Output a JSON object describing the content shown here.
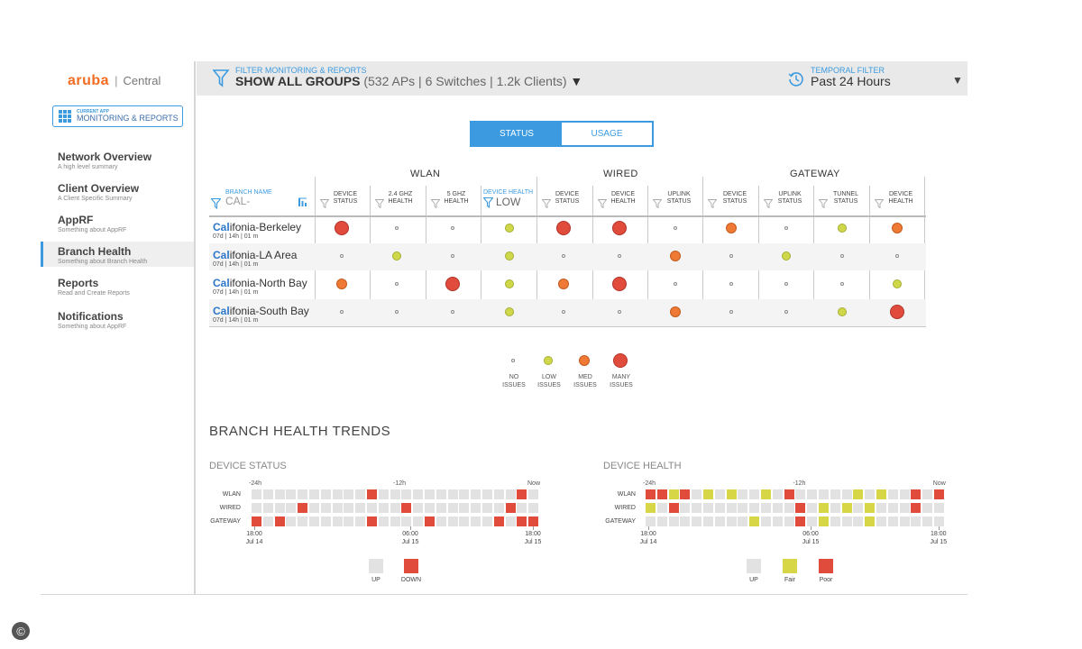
{
  "brand": {
    "name": "aruba",
    "separator": "|",
    "product": "Central"
  },
  "current_app": {
    "caption": "CURRENT APP",
    "name": "MONITORING & REPORTS"
  },
  "nav": [
    {
      "title": "Network Overview",
      "desc": "A high level summary",
      "active": false
    },
    {
      "title": "Client Overview",
      "desc": "A Client Specific Summary",
      "active": false
    },
    {
      "title": "AppRF",
      "desc": "Something about AppRF",
      "active": false
    },
    {
      "title": "Branch Health",
      "desc": "Something about Branch Health",
      "active": true
    },
    {
      "title": "Reports",
      "desc": "Read and Create Reports",
      "active": false
    },
    {
      "title": "Notifications",
      "desc": "Something about AppRF",
      "active": false
    }
  ],
  "filter": {
    "caption": "FILTER MONITORING & REPORTS",
    "value": "SHOW ALL GROUPS",
    "meta": "(532 APs | 6 Switches | 1.2k Clients)",
    "caret": "▼"
  },
  "temporal": {
    "caption": "TEMPORAL FILTER",
    "value": "Past 24 Hours",
    "caret": "▼"
  },
  "toggle": {
    "status": "STATUS",
    "usage": "USAGE"
  },
  "groups": [
    "WLAN",
    "WIRED",
    "GATEWAY"
  ],
  "branch_col": {
    "caption": "BRANCH NAME",
    "input": "CAL-"
  },
  "device_health_filter": {
    "caption": "DEVICE HEALTH",
    "value": "LOW"
  },
  "columns": [
    {
      "l1": "DEVICE",
      "l2": "STATUS"
    },
    {
      "l1": "2.4 GHZ",
      "l2": "HEALTH"
    },
    {
      "l1": "5 GHZ",
      "l2": "HEALTH"
    },
    {
      "l1": "",
      "l2": ""
    },
    {
      "l1": "DEVICE",
      "l2": "STATUS"
    },
    {
      "l1": "DEVICE",
      "l2": "HEALTH"
    },
    {
      "l1": "UPLINK",
      "l2": "STATUS"
    },
    {
      "l1": "DEVICE",
      "l2": "STATUS"
    },
    {
      "l1": "UPLINK",
      "l2": "STATUS"
    },
    {
      "l1": "TUNNEL",
      "l2": "STATUS"
    },
    {
      "l1": "DEVICE",
      "l2": "HEALTH"
    }
  ],
  "branches": [
    {
      "prefix": "Cal",
      "rest": "ifonia-Berkeley",
      "meta": "07d | 14h | 01 m",
      "status": [
        "many",
        "none",
        "none",
        "low",
        "many",
        "many",
        "none",
        "med",
        "none",
        "low",
        "med"
      ]
    },
    {
      "prefix": "Cal",
      "rest": "ifonia-LA Area",
      "meta": "07d | 14h | 01 m",
      "status": [
        "none",
        "low",
        "none",
        "low",
        "none",
        "none",
        "med",
        "none",
        "low",
        "none",
        "none"
      ]
    },
    {
      "prefix": "Cal",
      "rest": "ifonia-North Bay",
      "meta": "07d | 14h | 01 m",
      "status": [
        "med",
        "none",
        "many",
        "low",
        "med",
        "many",
        "none",
        "none",
        "none",
        "none",
        "low"
      ]
    },
    {
      "prefix": "Cal",
      "rest": "ifonia-South Bay",
      "meta": "07d | 14h | 01 m",
      "status": [
        "none",
        "none",
        "none",
        "low",
        "none",
        "none",
        "med",
        "none",
        "none",
        "low",
        "many"
      ]
    }
  ],
  "legend": [
    {
      "level": "none",
      "l1": "NO",
      "l2": "ISSUES"
    },
    {
      "level": "low",
      "l1": "LOW",
      "l2": "ISSUES"
    },
    {
      "level": "med",
      "l1": "MED",
      "l2": "ISSUES"
    },
    {
      "level": "many",
      "l1": "MANY",
      "l2": "ISSUES"
    }
  ],
  "trends": {
    "title": "BRANCH HEALTH TRENDS",
    "rows": [
      "WLAN",
      "WIRED",
      "GATEWAY"
    ],
    "top_labels": [
      "-24h",
      "-12h",
      "Now"
    ],
    "bottom_labels": [
      {
        "t": "18:00",
        "d": "Jul 14"
      },
      {
        "t": "06:00",
        "d": "Jul 15"
      },
      {
        "t": "18:00",
        "d": "Jul 15"
      }
    ],
    "device_status": {
      "title": "DEVICE STATUS",
      "grid": [
        "uuuuuuuuuuddduuuuuuuuuuuuuu",
        "uuuuuuuuuuuuuuuuuuuuuuuuuuu",
        "duduuuuuuuduuuuuuuuuuuuuudd"
      ],
      "cells": [
        [
          0,
          0,
          0,
          0,
          0,
          0,
          0,
          0,
          0,
          0,
          1,
          0,
          0,
          0,
          0,
          0,
          0,
          0,
          0,
          0,
          0,
          0,
          0,
          1,
          0
        ],
        [
          0,
          0,
          0,
          0,
          1,
          0,
          0,
          0,
          0,
          0,
          0,
          0,
          0,
          1,
          0,
          0,
          0,
          0,
          0,
          0,
          0,
          0,
          1,
          0,
          0
        ],
        [
          1,
          0,
          1,
          0,
          0,
          0,
          0,
          0,
          0,
          0,
          1,
          0,
          0,
          0,
          0,
          1,
          0,
          0,
          0,
          0,
          0,
          1,
          0,
          1,
          1
        ]
      ],
      "key": [
        {
          "state": "up",
          "label": "UP"
        },
        {
          "state": "down",
          "label": "DOWN"
        }
      ]
    },
    "device_health": {
      "title": "DEVICE HEALTH",
      "cells": [
        [
          2,
          2,
          1,
          2,
          0,
          1,
          0,
          1,
          0,
          0,
          1,
          0,
          2,
          0,
          0,
          0,
          0,
          0,
          1,
          0,
          1,
          0,
          0,
          2,
          0,
          2
        ],
        [
          1,
          0,
          2,
          0,
          0,
          0,
          0,
          0,
          0,
          0,
          0,
          0,
          0,
          2,
          0,
          1,
          0,
          1,
          0,
          1,
          0,
          0,
          0,
          2,
          0,
          0
        ],
        [
          0,
          0,
          0,
          0,
          0,
          0,
          0,
          0,
          0,
          1,
          0,
          0,
          0,
          2,
          0,
          1,
          0,
          0,
          0,
          1,
          0,
          0,
          0,
          0,
          0,
          0
        ]
      ],
      "key": [
        {
          "state": "up",
          "label": "UP"
        },
        {
          "state": "fair",
          "label": "Fair"
        },
        {
          "state": "poor",
          "label": "Poor"
        }
      ]
    }
  },
  "copyright": "©"
}
